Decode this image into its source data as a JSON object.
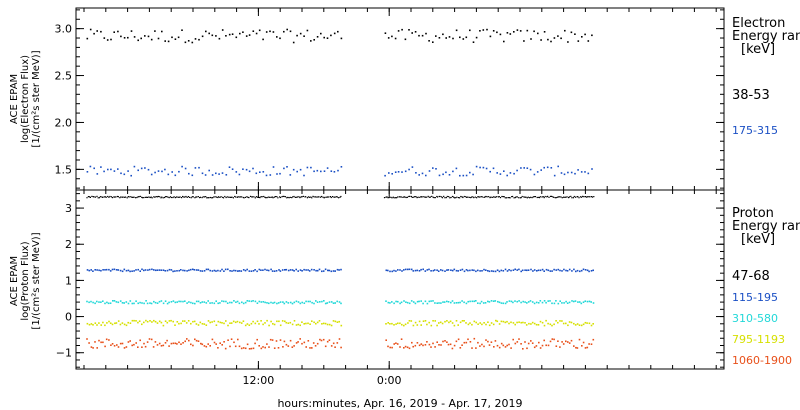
{
  "colors": {
    "black": "#000000",
    "blue": "#1a4fc4",
    "cyan": "#22d8d8",
    "yellow": "#d6e000",
    "orange": "#e8501a",
    "axis": "#000000"
  },
  "chart_data": [
    {
      "type": "scatter",
      "panel": "top",
      "ylabel_lines": [
        "ACE EPAM",
        "log(Electron Flux)",
        "[1/(cm²s ster MeV)]"
      ],
      "yticks": [
        "3.0",
        "2.5",
        "2.0",
        "1.5"
      ],
      "ytick_values": [
        3.0,
        2.5,
        2.0,
        1.5
      ],
      "ylim": [
        1.28,
        3.22
      ],
      "xlim_hours": [
        0,
        49
      ],
      "data_gaps_hours": [
        [
          23.6,
          27.5
        ]
      ],
      "legend_title_lines": [
        "Electron",
        "Energy ran",
        "[keV]"
      ],
      "series": [
        {
          "name": "38-53",
          "mean": 2.93,
          "spread": 0.07,
          "color": "black"
        },
        {
          "name": "175-315",
          "mean": 1.49,
          "spread": 0.05,
          "color": "blue"
        }
      ]
    },
    {
      "type": "scatter",
      "panel": "bottom",
      "ylabel_lines": [
        "ACE EPAM",
        "log(Proton Flux)",
        "[1/(cm²s ster MeV)]"
      ],
      "yticks": [
        "3",
        "2",
        "1",
        "0",
        "−1"
      ],
      "ytick_values": [
        3,
        2,
        1,
        0,
        -1
      ],
      "ylim": [
        -1.45,
        3.5
      ],
      "xlim_hours": [
        0,
        49
      ],
      "data_gaps_hours": [
        [
          23.6,
          27.5
        ]
      ],
      "legend_title_lines": [
        "Proton",
        "Energy ran",
        "[keV]"
      ],
      "series": [
        {
          "name": "47-68",
          "mean": 3.32,
          "spread": 0.02,
          "color": "black"
        },
        {
          "name": "115-195",
          "mean": 1.3,
          "spread": 0.03,
          "color": "blue"
        },
        {
          "name": "310-580",
          "mean": 0.42,
          "spread": 0.04,
          "color": "cyan"
        },
        {
          "name": "795-1193",
          "mean": -0.16,
          "spread": 0.07,
          "color": "yellow"
        },
        {
          "name": "1060-1900",
          "mean": -0.73,
          "spread": 0.14,
          "color": "orange"
        }
      ]
    }
  ],
  "xaxis": {
    "ticks": [
      {
        "label": "12:00",
        "hour": 16
      },
      {
        "label": "0:00",
        "hour": 28
      }
    ],
    "label": "hours:minutes, Apr. 16, 2019 - Apr. 17, 2019"
  }
}
